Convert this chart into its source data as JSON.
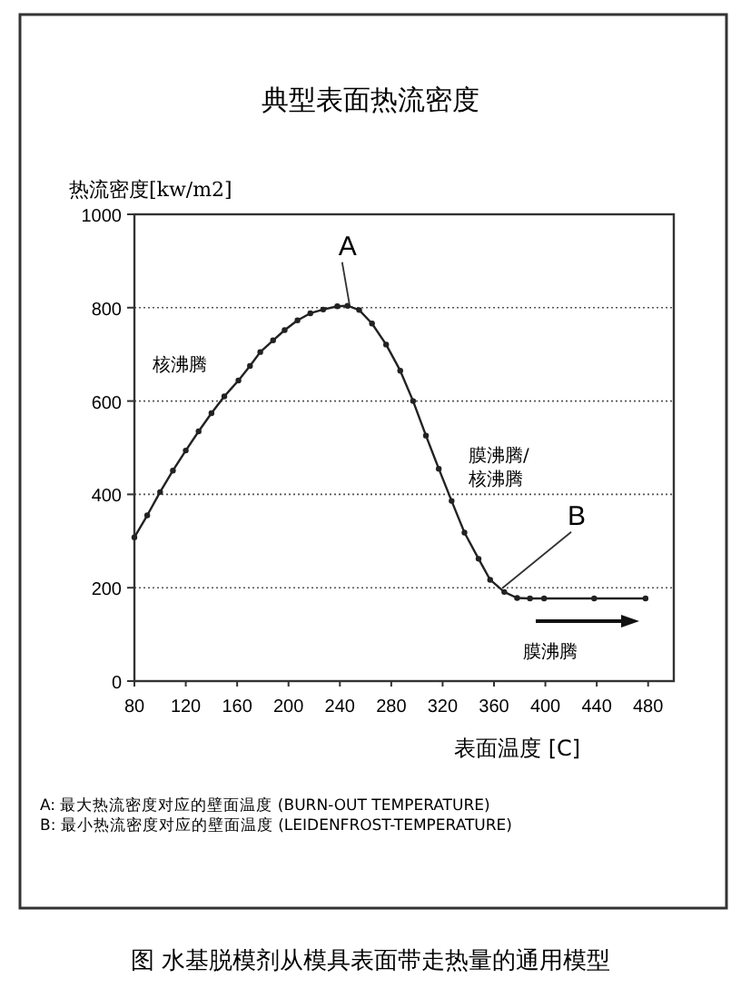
{
  "chart_data": {
    "type": "line",
    "title": "典型表面热流密度",
    "xlabel": "表面温度 [C]",
    "ylabel": "热流密度[kw/m2]",
    "x": [
      80,
      90,
      100,
      110,
      120,
      130,
      140,
      150,
      161,
      170,
      178,
      188,
      197,
      207,
      217,
      227,
      238,
      246,
      255,
      265,
      276,
      287,
      297,
      307,
      317,
      327,
      337,
      348,
      357,
      368,
      378,
      388,
      399,
      438,
      478
    ],
    "series": [
      {
        "color": "#222222",
        "values": [
          308,
          355,
          405,
          451,
          494,
          535,
          574,
          610,
          644,
          675,
          705,
          730,
          752,
          773,
          788,
          796,
          803,
          804,
          795,
          766,
          721,
          665,
          600,
          526,
          455,
          386,
          318,
          262,
          217,
          191,
          178,
          177,
          177,
          177,
          177
        ]
      }
    ],
    "xlim": [
      80,
      500
    ],
    "ylim": [
      0,
      1000
    ],
    "xticks": [
      80,
      120,
      160,
      200,
      240,
      280,
      320,
      360,
      400,
      440,
      480
    ],
    "yticks": [
      0,
      200,
      400,
      600,
      800,
      1000
    ],
    "grid": "y",
    "marker": "circle",
    "line_style": "solid",
    "annotations": [
      {
        "text": "A",
        "x": 246,
        "y": 804
      },
      {
        "text": "B",
        "x": 365,
        "y": 195
      },
      "核沸腾",
      "膜沸腾/核沸腾",
      "膜沸腾",
      "A: 最大热流密度对应的壁面温度 (BURN-OUT TEMPERATURE)",
      "B: 最小热流密度对应的壁面温度 (LEIDENFROST-TEMPERATURE)",
      "图 水基脱模剂从模具表面带走热量的通用模型"
    ]
  }
}
